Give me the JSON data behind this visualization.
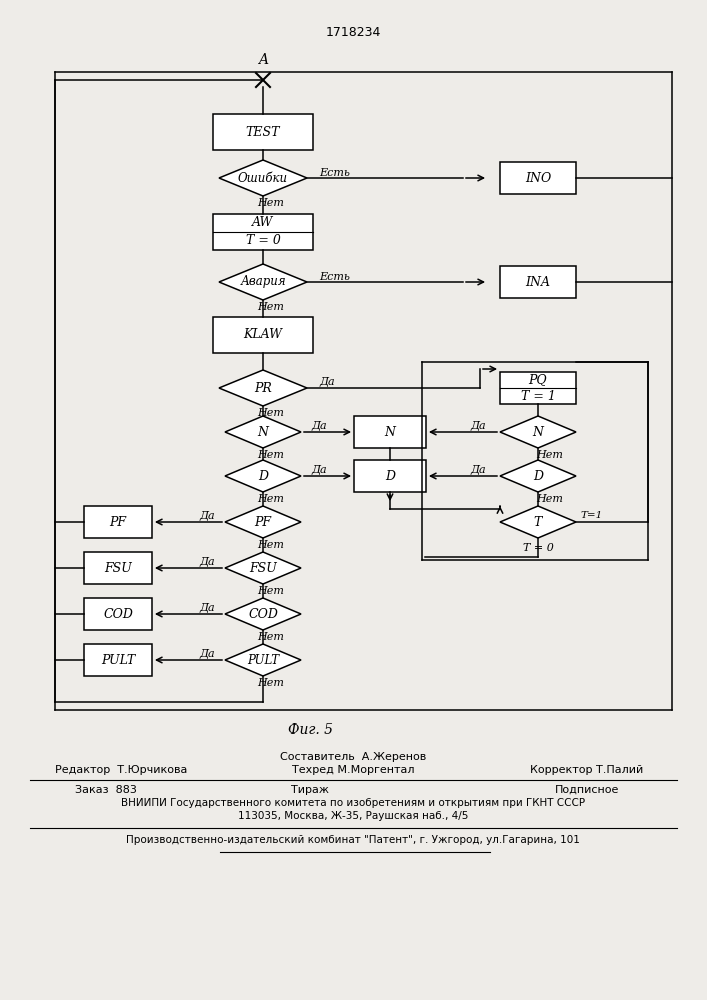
{
  "title": "1718234",
  "fig_label": "Фиг. 5",
  "background_color": "#eeece8",
  "fig_caption_line1": "Составитель  А.Жеренов",
  "fig_caption_line2": "Техред М.Моргентал",
  "editor": "Редактор  Т.Юрчикова",
  "corrector": "Корректор Т.Палий",
  "order_line1": "Заказ  883",
  "order_line2": "Тираж",
  "order_line3": "Подписное",
  "vniiipi_line1": "ВНИИПИ Государственного комитета по изобретениям и открытиям при ГКНТ СССР",
  "vniiipi_line2": "113035, Москва, Ж-35, Раушская наб., 4/5",
  "production_line": "Производственно-издательский комбинат \"Патент\", г. Ужгород, ул.Гагарина, 101"
}
